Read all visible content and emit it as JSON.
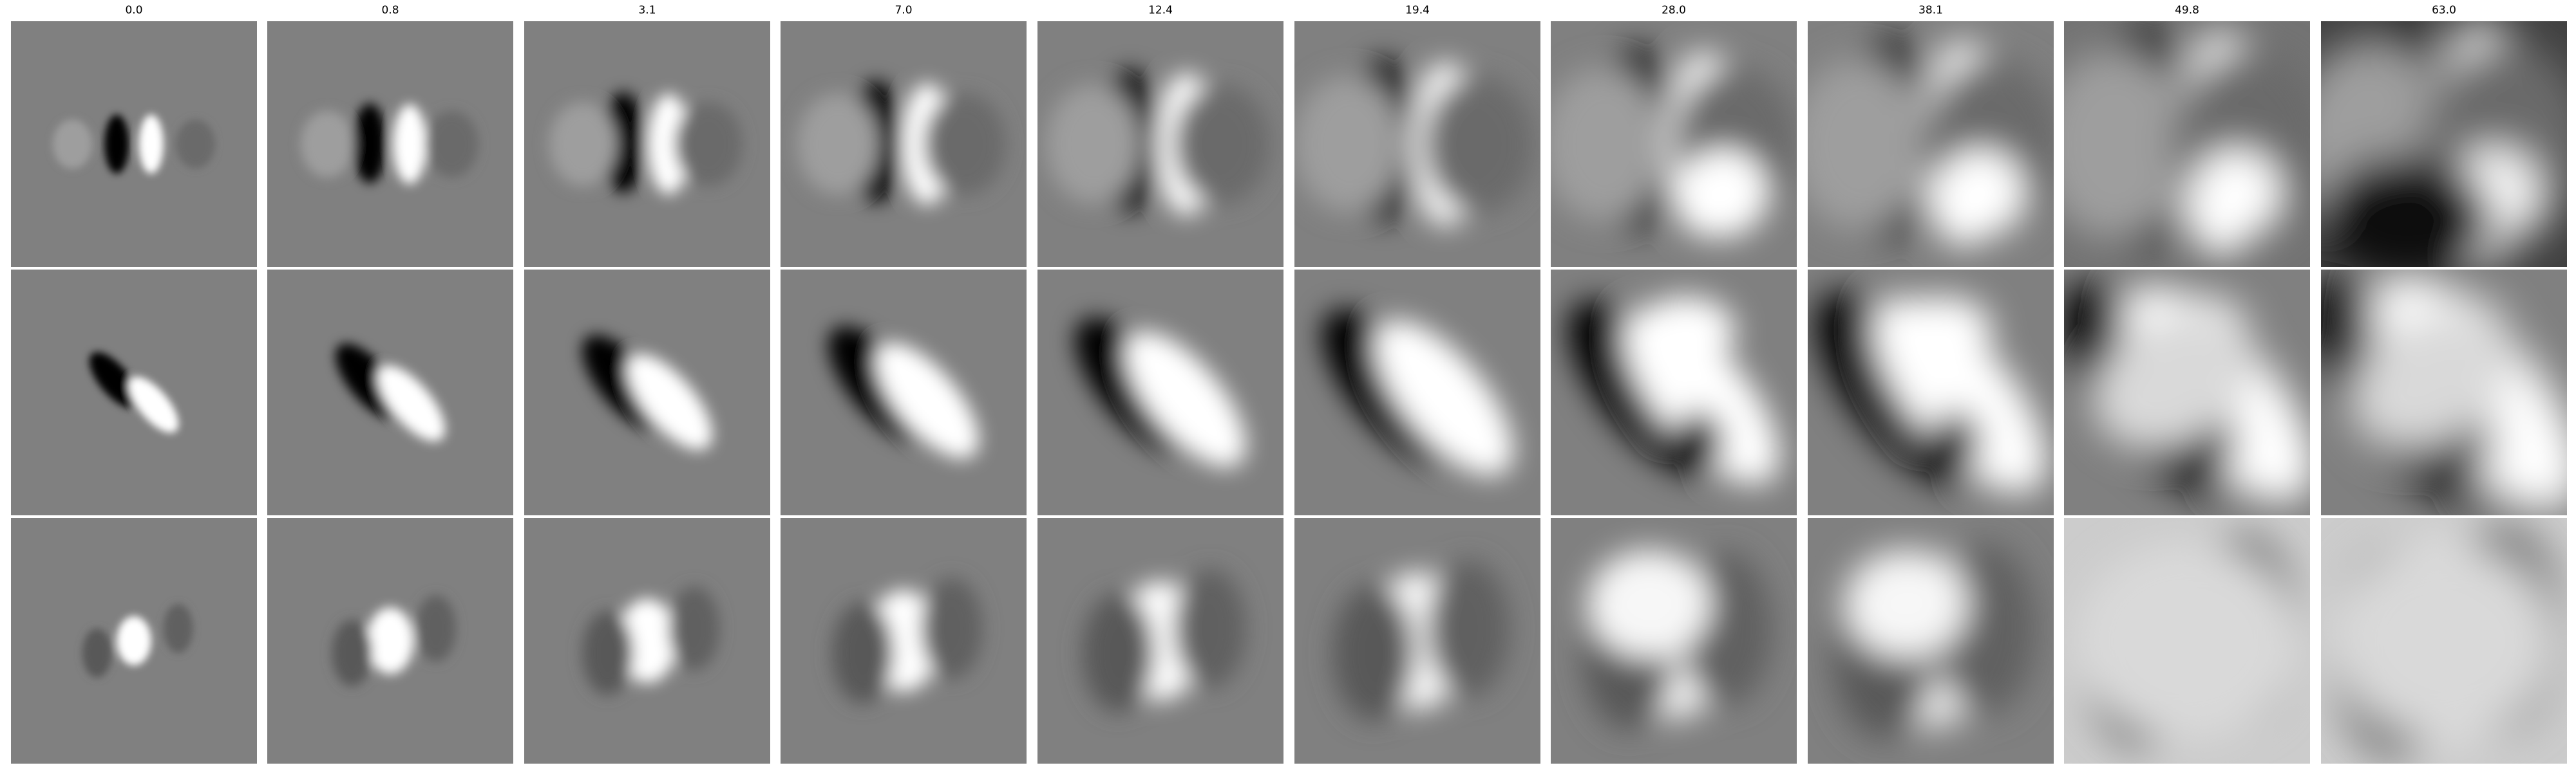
{
  "figure": {
    "column_titles": [
      "0.0",
      "0.8",
      "3.1",
      "7.0",
      "12.4",
      "19.4",
      "28.0",
      "38.1",
      "49.8",
      "63.0"
    ],
    "rows": 3,
    "background_gray": "#7f7f7f",
    "panel_colormap": "grayscale"
  }
}
